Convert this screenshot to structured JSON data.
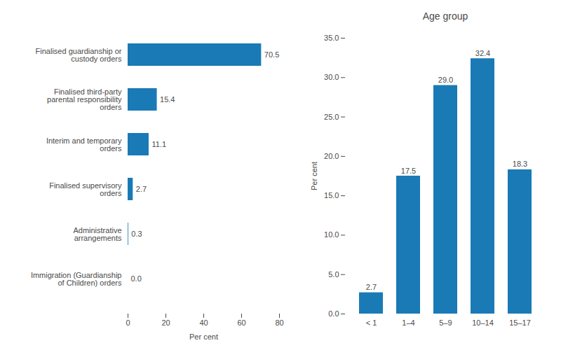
{
  "chart_data": [
    {
      "type": "bar",
      "orientation": "horizontal",
      "categories": [
        "Finalised guardianship or\ncustody orders",
        "Finalised third-party\nparental responsibility\norders",
        "Interim and temporary\norders",
        "Finalised supervisory\norders",
        "Administrative\narrangements",
        "Immigration (Guardianship\nof Children) orders"
      ],
      "values": [
        70.5,
        15.4,
        11.1,
        2.7,
        0.3,
        0.0
      ],
      "value_labels": [
        "70.5",
        "15.4",
        "11.1",
        "2.7",
        "0.3",
        "0.0"
      ],
      "color": "#1a7ab5",
      "xlabel": "Per cent",
      "xlim": [
        0,
        80
      ],
      "xticks": [
        0,
        20,
        40,
        60,
        80
      ],
      "data_labels": true
    },
    {
      "type": "bar",
      "title": "Age group",
      "categories": [
        "< 1",
        "1–4",
        "5–9",
        "10–14",
        "15–17"
      ],
      "values": [
        2.7,
        17.5,
        29.0,
        32.4,
        18.3
      ],
      "value_labels": [
        "2.7",
        "17.5",
        "29.0",
        "32.4",
        "18.3"
      ],
      "color": "#1a7ab5",
      "ylabel": "Per cent",
      "ylim": [
        0,
        35
      ],
      "yticks": [
        {
          "value": 0,
          "label": "0.0"
        },
        {
          "value": 5,
          "label": "5.0"
        },
        {
          "value": 10,
          "label": "10.0"
        },
        {
          "value": 15,
          "label": "15.0"
        },
        {
          "value": 20,
          "label": "20.0"
        },
        {
          "value": 25,
          "label": "25.0"
        },
        {
          "value": 30,
          "label": "30.0"
        },
        {
          "value": 35,
          "label": "35.0"
        }
      ],
      "data_labels": true
    }
  ]
}
